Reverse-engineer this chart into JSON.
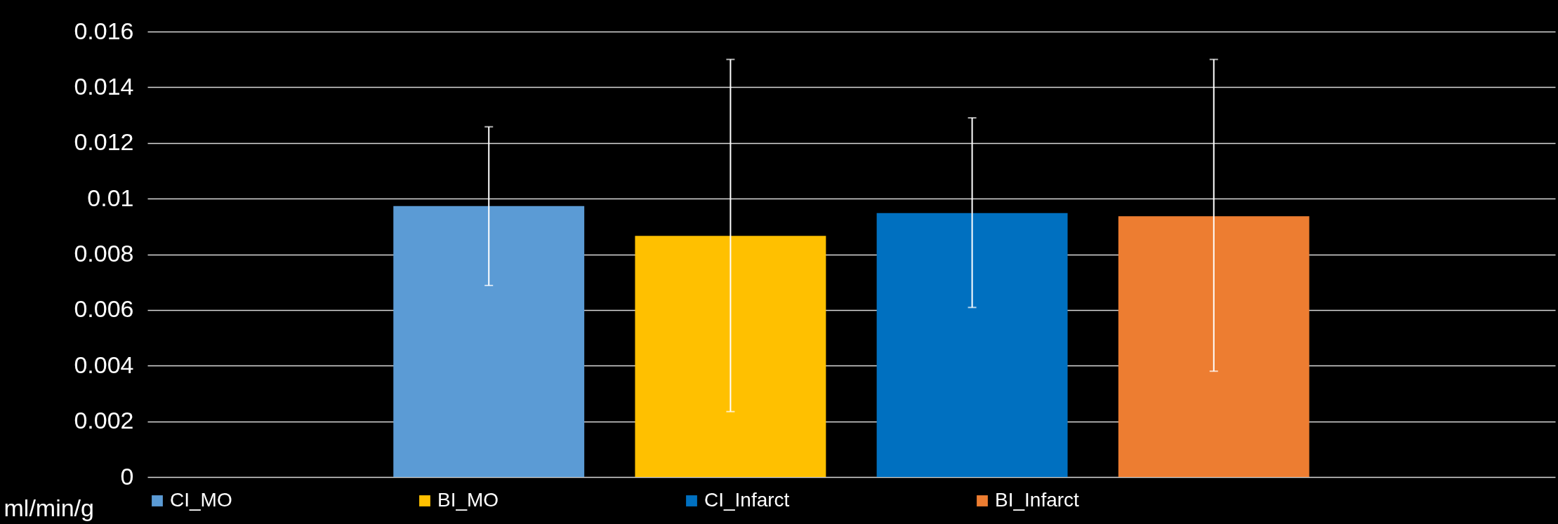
{
  "chart_data": {
    "type": "bar",
    "ylabel": "ml/min/g",
    "categories": [
      null
    ],
    "series": [
      {
        "name": "CI_MO",
        "color": "#5b9bd5",
        "values": [
          0.00973
        ],
        "errors": [
          [
            0.00688,
            0.01258
          ]
        ]
      },
      {
        "name": "BI_MO",
        "color": "#ffc000",
        "values": [
          0.00866
        ],
        "errors": [
          [
            0.00235,
            0.015
          ]
        ]
      },
      {
        "name": "CI_Infarct",
        "color": "#0070c0",
        "values": [
          0.00948
        ],
        "errors": [
          [
            0.00609,
            0.0129
          ]
        ]
      },
      {
        "name": "BI_Infarct",
        "color": "#ed7d31",
        "values": [
          0.00937
        ],
        "errors": [
          [
            0.0038,
            0.015
          ]
        ]
      }
    ],
    "ylim": [
      0,
      0.016
    ],
    "yticks": [
      0,
      0.002,
      0.004,
      0.006,
      0.008,
      0.01,
      0.012,
      0.014,
      0.016
    ],
    "grid": "y",
    "legend": "bottom"
  }
}
